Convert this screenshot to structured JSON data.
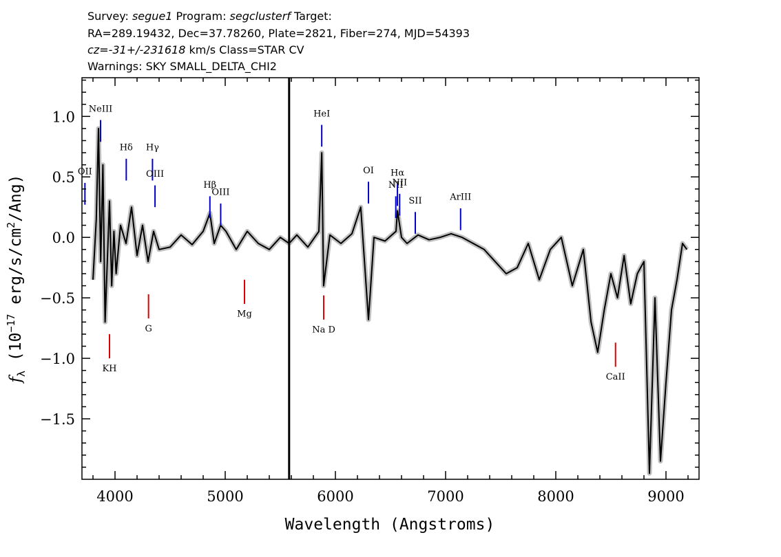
{
  "header": {
    "line1": {
      "survey_label": "Survey: ",
      "survey": "segue1",
      "program_label": " Program: ",
      "program": "segclusterf",
      "target_label": " Target:"
    },
    "line2": "RA=289.19432, Dec=37.78260, Plate=2821, Fiber=274, MJD=54393",
    "line3": {
      "cz": "cz=-31+/-231618",
      "rest": " km/s Class=STAR CV"
    },
    "line4": "Warnings: SKY SMALL_DELTA_CHI2"
  },
  "colors": {
    "flux": "#000000",
    "error_band": "#c0c0c0",
    "emission": "#0000cc",
    "absorption": "#dd0000",
    "axes": "#000000"
  },
  "chart_data": {
    "type": "line",
    "title": "",
    "xlabel": "Wavelength (Angstroms)",
    "ylabel": "f_λ (10^-17 erg/s/cm²/Ang)",
    "xlim": [
      3700,
      9300
    ],
    "ylim": [
      -2.0,
      1.32
    ],
    "xticks": [
      4000,
      5000,
      6000,
      7000,
      8000,
      9000
    ],
    "xtick_labels": [
      "4000",
      "5000",
      "6000",
      "7000",
      "8000",
      "9000"
    ],
    "yticks": [
      -1.5,
      -1.0,
      -0.5,
      0.0,
      0.5,
      1.0
    ],
    "ytick_labels": [
      "−1.5",
      "−1.0",
      "−0.5",
      "0.0",
      "0.5",
      "1.0"
    ],
    "vertical_marker": 5580,
    "series": [
      {
        "x": [
          3800,
          3830,
          3850,
          3870,
          3890,
          3910,
          3930,
          3950,
          3970,
          3990,
          4010,
          4050,
          4100,
          4150,
          4200,
          4250,
          4300,
          4350,
          4400,
          4500,
          4600,
          4700,
          4800,
          4861,
          4900,
          4959,
          5007,
          5100,
          5200,
          5300,
          5400,
          5500,
          5580,
          5650,
          5750,
          5850,
          5876,
          5893,
          5950,
          6050,
          6150,
          6230,
          6300,
          6350,
          6450,
          6550,
          6563,
          6600,
          6650,
          6750,
          6850,
          6950,
          7050,
          7150,
          7250,
          7350,
          7450,
          7550,
          7650,
          7750,
          7850,
          7950,
          8050,
          8150,
          8250,
          8320,
          8380,
          8440,
          8500,
          8560,
          8620,
          8680,
          8740,
          8800,
          8850,
          8900,
          8950,
          9000,
          9050,
          9100,
          9150,
          9190
        ],
        "y": [
          -0.35,
          0.15,
          0.9,
          -0.2,
          0.6,
          -0.7,
          -0.2,
          0.3,
          -0.4,
          0.05,
          -0.3,
          0.1,
          -0.05,
          0.25,
          -0.15,
          0.1,
          -0.2,
          0.05,
          -0.1,
          -0.08,
          0.02,
          -0.06,
          0.05,
          0.2,
          -0.05,
          0.1,
          0.05,
          -0.1,
          0.05,
          -0.05,
          -0.1,
          0.0,
          -0.05,
          0.02,
          -0.08,
          0.05,
          0.7,
          -0.4,
          0.02,
          -0.05,
          0.03,
          0.25,
          -0.68,
          0.0,
          -0.03,
          0.05,
          0.22,
          0.0,
          -0.05,
          0.02,
          -0.02,
          0.0,
          0.03,
          0.0,
          -0.05,
          -0.1,
          -0.2,
          -0.3,
          -0.25,
          -0.05,
          -0.35,
          -0.1,
          0.0,
          -0.4,
          -0.1,
          -0.7,
          -0.95,
          -0.6,
          -0.3,
          -0.5,
          -0.15,
          -0.55,
          -0.3,
          -0.2,
          -1.95,
          -0.5,
          -1.85,
          -1.2,
          -0.6,
          -0.35,
          -0.05,
          -0.1
        ]
      }
    ],
    "line_labels": [
      {
        "text": "OII",
        "wavelength": 3727,
        "type": "emission"
      },
      {
        "text": "NeIII",
        "wavelength": 3869,
        "type": "emission"
      },
      {
        "text": "Hδ",
        "wavelength": 4102,
        "type": "emission"
      },
      {
        "text": "Hγ",
        "wavelength": 4340,
        "type": "emission"
      },
      {
        "text": "OIII",
        "wavelength": 4363,
        "type": "emission"
      },
      {
        "text": "Hβ",
        "wavelength": 4861,
        "type": "emission"
      },
      {
        "text": "OIII",
        "wavelength": 4959,
        "type": "emission"
      },
      {
        "text": "HeI",
        "wavelength": 5876,
        "type": "emission"
      },
      {
        "text": "OI",
        "wavelength": 6300,
        "type": "emission"
      },
      {
        "text": "NII",
        "wavelength": 6548,
        "type": "emission"
      },
      {
        "text": "Hα",
        "wavelength": 6563,
        "type": "emission"
      },
      {
        "text": "NII",
        "wavelength": 6583,
        "type": "emission"
      },
      {
        "text": "SII",
        "wavelength": 6725,
        "type": "emission"
      },
      {
        "text": "ArIII",
        "wavelength": 7136,
        "type": "emission"
      },
      {
        "text": "KH",
        "wavelength": 3950,
        "type": "absorption"
      },
      {
        "text": "G",
        "wavelength": 4304,
        "type": "absorption"
      },
      {
        "text": "Mg",
        "wavelength": 5175,
        "type": "absorption"
      },
      {
        "text": "Na D",
        "wavelength": 5894,
        "type": "absorption"
      },
      {
        "text": "CaII",
        "wavelength": 8542,
        "type": "absorption"
      }
    ]
  }
}
